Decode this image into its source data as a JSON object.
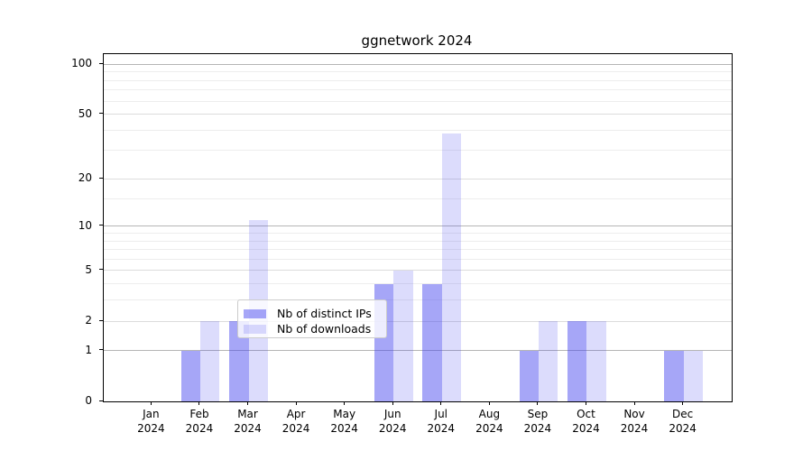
{
  "title": "ggnetwork 2024",
  "chart_data": {
    "type": "bar",
    "title": "ggnetwork 2024",
    "categories": [
      "Jan 2024",
      "Feb 2024",
      "Mar 2024",
      "Apr 2024",
      "May 2024",
      "Jun 2024",
      "Jul 2024",
      "Aug 2024",
      "Sep 2024",
      "Oct 2024",
      "Nov 2024",
      "Dec 2024"
    ],
    "series": [
      {
        "name": "Nb of distinct IPs",
        "color": "rgba(68,68,238,0.48)",
        "values": [
          0,
          1,
          2,
          0,
          0,
          4,
          4,
          0,
          1,
          2,
          0,
          1
        ]
      },
      {
        "name": "Nb of downloads",
        "color": "rgba(68,68,238,0.19)",
        "values": [
          0,
          2,
          11,
          0,
          0,
          5,
          38,
          0,
          2,
          2,
          0,
          1
        ]
      }
    ],
    "xlabel": "",
    "ylabel": "",
    "yscale": "log1p",
    "ylim": [
      0,
      115
    ],
    "yticks_labeled": [
      0,
      1,
      2,
      5,
      10,
      20,
      50,
      100
    ],
    "yticks_decade": [
      1,
      10,
      100
    ],
    "yticks_minor": [
      3,
      4,
      6,
      7,
      8,
      9,
      15,
      30,
      40,
      60,
      70,
      80,
      90
    ],
    "grid": true,
    "legend_position": "inside-bottom-center"
  },
  "colors": {
    "background": "#ffffff",
    "spine": "#000000",
    "text": "#000000",
    "grid_decade": "#b5b5b5",
    "grid_labeled": "#dcdcdc",
    "grid_minor": "#ededed",
    "legend_border": "#cccccc"
  }
}
